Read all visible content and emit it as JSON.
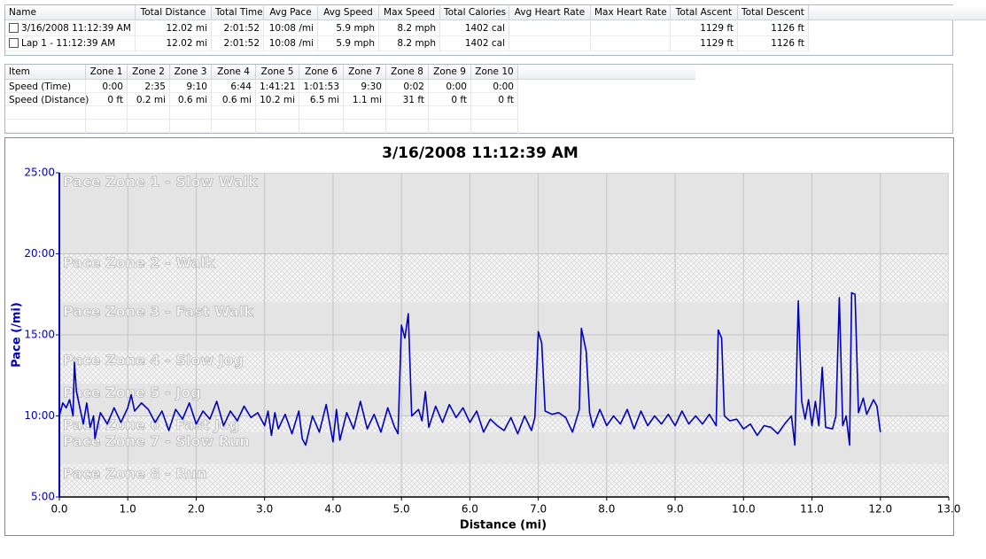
{
  "summary_table": {
    "columns": [
      "Name",
      "Total Distance",
      "Total Time",
      "Avg Pace",
      "Avg Speed",
      "Max Speed",
      "Total Calories",
      "Avg Heart Rate",
      "Max Heart Rate",
      "Total Ascent",
      "Total Descent"
    ],
    "rows": [
      [
        "3/16/2008 11:12:39 AM",
        "12.02 mi",
        "2:01:52",
        "10:08 /mi",
        "5.9 mph",
        "8.2 mph",
        "1402 cal",
        null,
        null,
        "1129 ft",
        "1126 ft"
      ],
      [
        "Lap 1 - 11:12:39 AM",
        "12.02 mi",
        "2:01:52",
        "10:08 /mi",
        "5.9 mph",
        "8.2 mph",
        "1402 cal",
        null,
        null,
        "1129 ft",
        "1126 ft"
      ]
    ]
  },
  "zones_table": {
    "columns": [
      "Item",
      "Zone 1",
      "Zone 2",
      "Zone 3",
      "Zone 4",
      "Zone 5",
      "Zone 6",
      "Zone 7",
      "Zone 8",
      "Zone 9",
      "Zone 10"
    ],
    "rows": [
      [
        "Speed (Time)",
        "0:00",
        "2:35",
        "9:10",
        "6:44",
        "1:41:21",
        "1:01:53",
        "9:30",
        "0:02",
        "0:00",
        "0:00"
      ],
      [
        "Speed (Distance)",
        "0 ft",
        "0.2 mi",
        "0.6 mi",
        "0.6 mi",
        "10.2 mi",
        "6.5 mi",
        "1.1 mi",
        "31 ft",
        "0 ft",
        "0 ft"
      ]
    ]
  },
  "chart_data": {
    "type": "line",
    "title": "3/16/2008 11:12:39 AM",
    "x_label": "Distance (mi)",
    "y_label": "Pace (/mi)",
    "color": "#0000c0",
    "grid": true,
    "xlim": [
      0,
      13
    ],
    "ylim": [
      5,
      25
    ],
    "xticks": [
      {
        "value": 0,
        "label": "0.0"
      },
      {
        "value": 1,
        "label": "1.0"
      },
      {
        "value": 2,
        "label": "2.0"
      },
      {
        "value": 3,
        "label": "3.0"
      },
      {
        "value": 4,
        "label": "4.0"
      },
      {
        "value": 5,
        "label": "5.0"
      },
      {
        "value": 6,
        "label": "6.0"
      },
      {
        "value": 7,
        "label": "7.0"
      },
      {
        "value": 8,
        "label": "8.0"
      },
      {
        "value": 9,
        "label": "9.0"
      },
      {
        "value": 10,
        "label": "10.0"
      },
      {
        "value": 11,
        "label": "11.0"
      },
      {
        "value": 12,
        "label": "12.0"
      },
      {
        "value": 13,
        "label": "13.0"
      }
    ],
    "yticks": [
      {
        "value": 5,
        "label": "5:00"
      },
      {
        "value": 10,
        "label": "10:00"
      },
      {
        "value": 15,
        "label": "15:00"
      },
      {
        "value": 20,
        "label": "20:00"
      },
      {
        "value": 25,
        "label": "25:00"
      }
    ],
    "zones": [
      {
        "label": "Pace Zone 1 - Slow Walk",
        "lo": 20,
        "hi": 25
      },
      {
        "label": "Pace Zone 2 - Walk",
        "lo": 17,
        "hi": 20
      },
      {
        "label": "Pace Zone 3 - Fast Walk",
        "lo": 14,
        "hi": 17
      },
      {
        "label": "Pace Zone 4 - Slow Jog",
        "lo": 12,
        "hi": 14
      },
      {
        "label": "Pace Zone 5 - Jog",
        "lo": 10,
        "hi": 12
      },
      {
        "label": "Pace Zone 6 - Fast Jog",
        "lo": 9,
        "hi": 10
      },
      {
        "label": "Pace Zone 7 - Slow Run",
        "lo": 7,
        "hi": 9
      },
      {
        "label": "Pace Zone 8 - Run",
        "lo": 5,
        "hi": 7
      }
    ],
    "x": [
      0.0,
      0.05,
      0.1,
      0.15,
      0.2,
      0.22,
      0.25,
      0.3,
      0.35,
      0.4,
      0.45,
      0.5,
      0.52,
      0.6,
      0.7,
      0.8,
      0.9,
      1.0,
      1.05,
      1.1,
      1.2,
      1.3,
      1.4,
      1.5,
      1.6,
      1.7,
      1.8,
      1.9,
      2.0,
      2.1,
      2.2,
      2.3,
      2.4,
      2.5,
      2.6,
      2.7,
      2.8,
      2.9,
      3.0,
      3.05,
      3.1,
      3.15,
      3.2,
      3.3,
      3.4,
      3.5,
      3.55,
      3.6,
      3.7,
      3.8,
      3.9,
      4.0,
      4.05,
      4.1,
      4.2,
      4.3,
      4.4,
      4.5,
      4.6,
      4.7,
      4.8,
      4.9,
      4.95,
      5.0,
      5.05,
      5.1,
      5.15,
      5.25,
      5.3,
      5.35,
      5.4,
      5.5,
      5.6,
      5.7,
      5.8,
      5.9,
      6.0,
      6.1,
      6.2,
      6.3,
      6.4,
      6.5,
      6.6,
      6.7,
      6.8,
      6.9,
      6.95,
      7.0,
      7.05,
      7.1,
      7.2,
      7.3,
      7.4,
      7.5,
      7.6,
      7.63,
      7.7,
      7.75,
      7.8,
      7.9,
      8.0,
      8.1,
      8.2,
      8.3,
      8.4,
      8.5,
      8.6,
      8.7,
      8.8,
      8.9,
      9.0,
      9.1,
      9.2,
      9.3,
      9.4,
      9.5,
      9.6,
      9.63,
      9.68,
      9.72,
      9.8,
      9.9,
      10.0,
      10.1,
      10.2,
      10.3,
      10.4,
      10.5,
      10.6,
      10.7,
      10.75,
      10.8,
      10.85,
      10.9,
      10.95,
      11.0,
      11.05,
      11.1,
      11.15,
      11.2,
      11.3,
      11.35,
      11.4,
      11.45,
      11.5,
      11.55,
      11.58,
      11.63,
      11.68,
      11.75,
      11.8,
      11.9,
      11.95,
      12.0
    ],
    "values": [
      10.0,
      10.8,
      10.5,
      11.0,
      10.0,
      13.3,
      11.5,
      10.5,
      9.5,
      10.8,
      9.3,
      10.0,
      8.6,
      10.2,
      9.5,
      10.5,
      9.6,
      10.5,
      11.3,
      10.3,
      10.8,
      10.4,
      9.6,
      10.3,
      9.1,
      10.4,
      9.8,
      10.8,
      9.5,
      10.3,
      9.8,
      10.9,
      9.4,
      10.3,
      9.7,
      10.6,
      9.9,
      10.2,
      9.4,
      10.3,
      8.8,
      10.2,
      9.2,
      10.1,
      8.9,
      10.3,
      8.6,
      8.2,
      10.0,
      9.0,
      10.7,
      8.4,
      10.4,
      8.5,
      10.2,
      9.2,
      10.9,
      9.2,
      10.1,
      9.0,
      10.5,
      9.3,
      8.9,
      15.6,
      14.8,
      16.3,
      10.0,
      10.4,
      9.7,
      11.5,
      9.3,
      10.6,
      9.6,
      10.7,
      9.9,
      10.5,
      9.6,
      10.3,
      9.0,
      9.8,
      9.4,
      9.1,
      9.9,
      8.9,
      10.0,
      9.1,
      9.9,
      15.2,
      14.5,
      10.3,
      10.1,
      10.2,
      9.9,
      9.0,
      10.4,
      15.4,
      14.0,
      10.2,
      9.3,
      10.4,
      9.4,
      10.0,
      9.5,
      10.4,
      9.2,
      10.3,
      9.4,
      10.0,
      9.5,
      10.1,
      9.4,
      10.3,
      9.5,
      10.0,
      9.5,
      10.1,
      9.4,
      15.3,
      14.8,
      10.0,
      9.7,
      9.8,
      9.2,
      9.5,
      8.8,
      9.4,
      9.3,
      8.9,
      9.5,
      10.0,
      8.2,
      17.1,
      10.9,
      9.8,
      11.0,
      9.4,
      10.9,
      9.4,
      13.0,
      9.3,
      9.2,
      10.0,
      17.3,
      9.4,
      10.0,
      8.2,
      17.6,
      17.5,
      10.2,
      11.1,
      10.1,
      11.0,
      10.6,
      9.0
    ]
  }
}
